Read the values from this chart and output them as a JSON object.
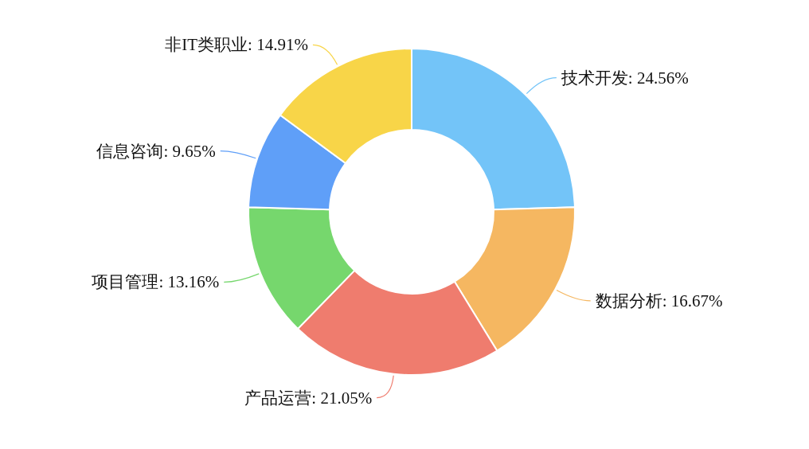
{
  "chart_data": {
    "type": "donut",
    "categories": [
      "技术开发",
      "数据分析",
      "产品运营",
      "项目管理",
      "信息咨询",
      "非IT类职业"
    ],
    "values": [
      24.56,
      16.67,
      21.05,
      13.16,
      9.65,
      14.91
    ],
    "value_labels": [
      "24.56%",
      "16.67%",
      "21.05%",
      "13.16%",
      "9.65%",
      "14.91%"
    ],
    "colors": [
      "#73c4f8",
      "#f5b761",
      "#ef7c6e",
      "#76d76d",
      "#5f9ff8",
      "#f8d548"
    ],
    "legend": false
  }
}
